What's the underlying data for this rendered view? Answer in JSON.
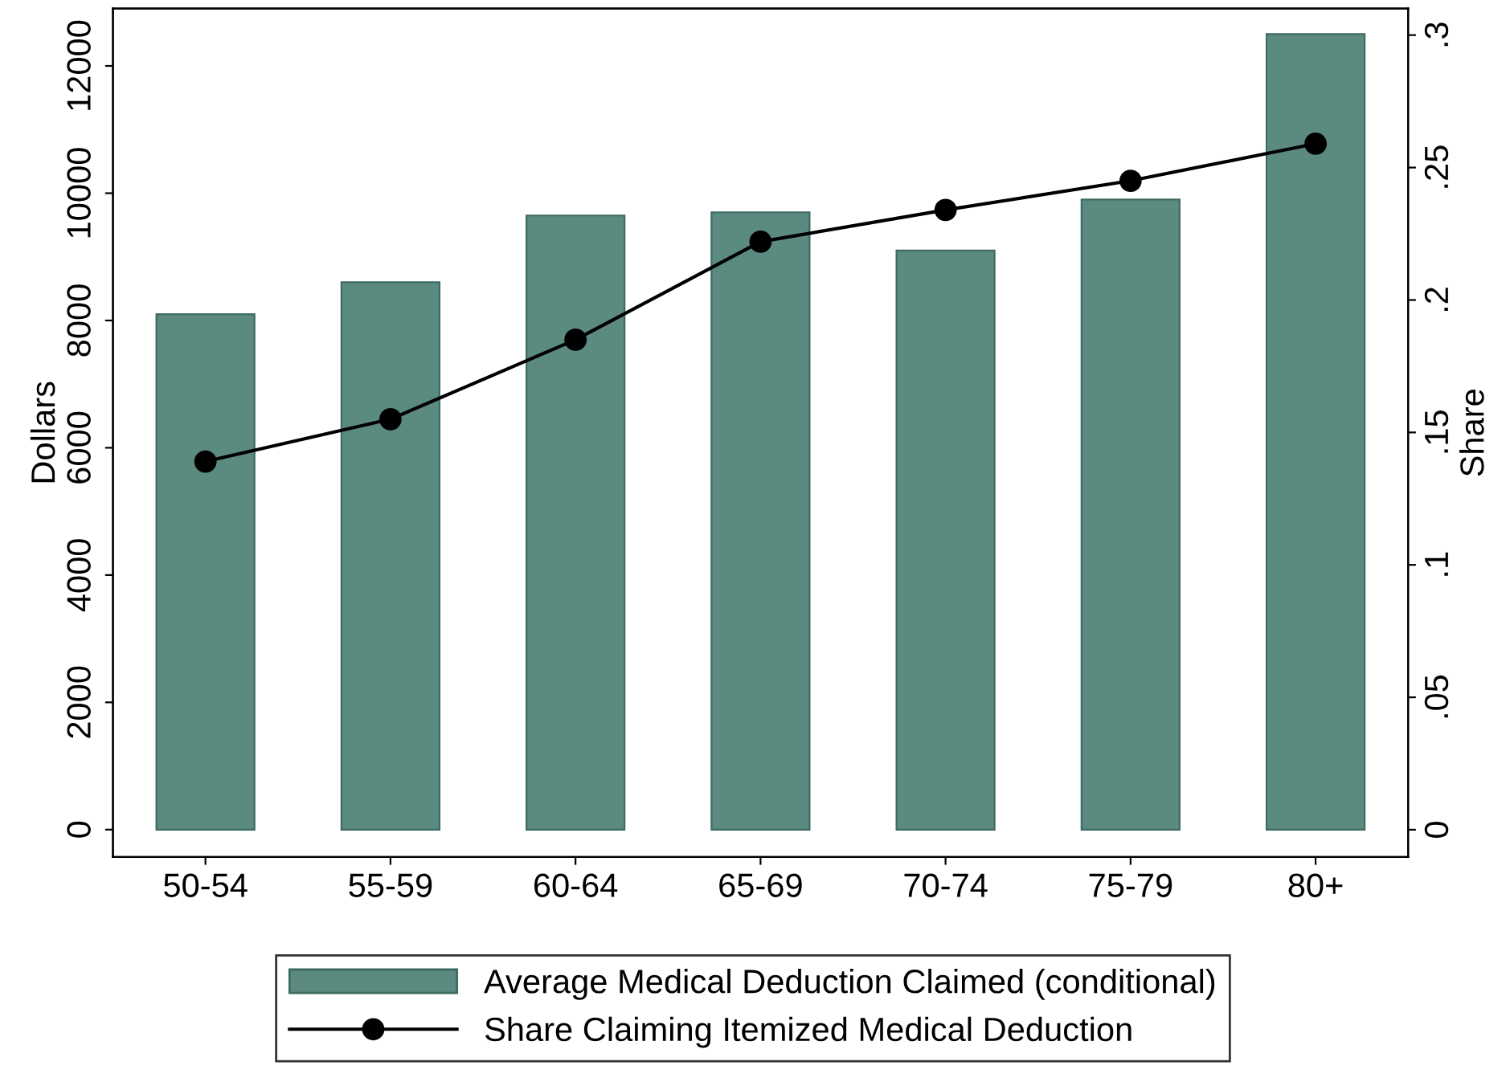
{
  "chart_data": {
    "type": "bar",
    "categories": [
      "50-54",
      "55-59",
      "60-64",
      "65-69",
      "70-74",
      "75-79",
      "80+"
    ],
    "series": [
      {
        "name": "Average Medical Deduction Claimed (conditional)",
        "color": "#5b8a81",
        "values": [
          8100,
          8600,
          9650,
          9700,
          9100,
          9900,
          12500
        ]
      },
      {
        "name": "Share Claiming Itemized Medical Deduction",
        "type": "line",
        "axis": "y2",
        "color": "#000000",
        "values": [
          0.139,
          0.155,
          0.185,
          0.222,
          0.234,
          0.245,
          0.259
        ]
      }
    ],
    "ylabel": "Dollars",
    "y2label": "Share",
    "ylim": [
      -430,
      12900
    ],
    "yticks": [
      0,
      2000,
      4000,
      6000,
      8000,
      10000,
      12000
    ],
    "y2lim": [
      -0.0103,
      0.31
    ],
    "y2ticks": [
      {
        "value": 0,
        "label": "0"
      },
      {
        "value": 0.05,
        "label": ".05"
      },
      {
        "value": 0.1,
        "label": ".1"
      },
      {
        "value": 0.15,
        "label": ".15"
      },
      {
        "value": 0.2,
        "label": ".2"
      },
      {
        "value": 0.25,
        "label": ".25"
      },
      {
        "value": 0.3,
        "label": ".3"
      }
    ],
    "marker": "circle",
    "line_style": "solid",
    "grid": false,
    "legend": "bottom"
  }
}
